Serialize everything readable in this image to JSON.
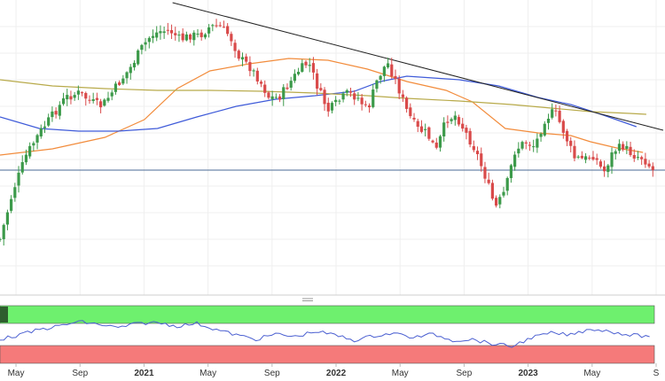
{
  "chart_data": {
    "type": "candlestick",
    "title": "",
    "x_ticks": [
      {
        "label": "May",
        "date": "2020-05",
        "bold": false
      },
      {
        "label": "Sep",
        "date": "2020-09",
        "bold": false
      },
      {
        "label": "2021",
        "date": "2021-01",
        "bold": true
      },
      {
        "label": "May",
        "date": "2021-05",
        "bold": false
      },
      {
        "label": "Sep",
        "date": "2021-09",
        "bold": false
      },
      {
        "label": "2022",
        "date": "2022-01",
        "bold": true
      },
      {
        "label": "May",
        "date": "2022-05",
        "bold": false
      },
      {
        "label": "Sep",
        "date": "2022-09",
        "bold": false
      },
      {
        "label": "2023",
        "date": "2023-01",
        "bold": true
      },
      {
        "label": "May",
        "date": "2023-05",
        "bold": false
      },
      {
        "label": "S",
        "date": "2023-09",
        "bold": false
      }
    ],
    "xlim": [
      "2020-04",
      "2023-09"
    ],
    "grid": true,
    "price_panel": {
      "close_path": [
        [
          0.0,
          270
        ],
        [
          0.02,
          215
        ],
        [
          0.04,
          175
        ],
        [
          0.06,
          150
        ],
        [
          0.08,
          130
        ],
        [
          0.1,
          110
        ],
        [
          0.12,
          105
        ],
        [
          0.14,
          115
        ],
        [
          0.155,
          120
        ],
        [
          0.17,
          105
        ],
        [
          0.185,
          90
        ],
        [
          0.2,
          75
        ],
        [
          0.215,
          55
        ],
        [
          0.23,
          40
        ],
        [
          0.245,
          35
        ],
        [
          0.26,
          35
        ],
        [
          0.275,
          45
        ],
        [
          0.29,
          40
        ],
        [
          0.305,
          40
        ],
        [
          0.32,
          30
        ],
        [
          0.335,
          30
        ],
        [
          0.35,
          40
        ],
        [
          0.365,
          65
        ],
        [
          0.38,
          75
        ],
        [
          0.395,
          90
        ],
        [
          0.41,
          110
        ],
        [
          0.425,
          110
        ],
        [
          0.44,
          95
        ],
        [
          0.455,
          80
        ],
        [
          0.47,
          70
        ],
        [
          0.485,
          100
        ],
        [
          0.5,
          125
        ],
        [
          0.515,
          115
        ],
        [
          0.53,
          105
        ],
        [
          0.545,
          110
        ],
        [
          0.56,
          125
        ],
        [
          0.575,
          90
        ],
        [
          0.59,
          70
        ],
        [
          0.605,
          95
        ],
        [
          0.62,
          125
        ],
        [
          0.635,
          145
        ],
        [
          0.65,
          150
        ],
        [
          0.665,
          170
        ],
        [
          0.68,
          135
        ],
        [
          0.695,
          130
        ],
        [
          0.71,
          150
        ],
        [
          0.725,
          170
        ],
        [
          0.74,
          200
        ],
        [
          0.755,
          235
        ],
        [
          0.77,
          215
        ],
        [
          0.785,
          170
        ],
        [
          0.8,
          160
        ],
        [
          0.815,
          165
        ],
        [
          0.83,
          135
        ],
        [
          0.845,
          125
        ],
        [
          0.86,
          150
        ],
        [
          0.875,
          178
        ],
        [
          0.89,
          180
        ],
        [
          0.905,
          175
        ],
        [
          0.92,
          195
        ],
        [
          0.935,
          170
        ],
        [
          0.95,
          165
        ],
        [
          0.965,
          175
        ],
        [
          0.98,
          178
        ],
        [
          0.995,
          192
        ]
      ],
      "moving_averages": [
        {
          "color": "#f28c3c",
          "points": [
            [
              0.0,
              175
            ],
            [
              0.08,
              168
            ],
            [
              0.16,
              155
            ],
            [
              0.22,
              135
            ],
            [
              0.27,
              100
            ],
            [
              0.32,
              80
            ],
            [
              0.38,
              72
            ],
            [
              0.44,
              66
            ],
            [
              0.5,
              68
            ],
            [
              0.56,
              78
            ],
            [
              0.62,
              92
            ],
            [
              0.68,
              102
            ],
            [
              0.72,
              115
            ],
            [
              0.77,
              145
            ],
            [
              0.82,
              150
            ],
            [
              0.87,
              153
            ],
            [
              0.9,
              160
            ],
            [
              0.94,
              167
            ],
            [
              0.98,
              172
            ]
          ]
        },
        {
          "color": "#3f5bd9",
          "points": [
            [
              0.0,
              132
            ],
            [
              0.06,
              145
            ],
            [
              0.12,
              148
            ],
            [
              0.18,
              148
            ],
            [
              0.24,
              145
            ],
            [
              0.3,
              132
            ],
            [
              0.36,
              120
            ],
            [
              0.42,
              112
            ],
            [
              0.48,
              108
            ],
            [
              0.54,
              103
            ],
            [
              0.58,
              92
            ],
            [
              0.62,
              86
            ],
            [
              0.66,
              88
            ],
            [
              0.7,
              90
            ],
            [
              0.76,
              97
            ],
            [
              0.82,
              110
            ],
            [
              0.87,
              118
            ],
            [
              0.92,
              130
            ],
            [
              0.97,
              143
            ]
          ]
        },
        {
          "color": "#b8aa4a",
          "points": [
            [
              0.0,
              90
            ],
            [
              0.08,
              97
            ],
            [
              0.16,
              100
            ],
            [
              0.24,
              102
            ],
            [
              0.32,
              102
            ],
            [
              0.4,
              103
            ],
            [
              0.48,
              105
            ],
            [
              0.56,
              108
            ],
            [
              0.62,
              111
            ],
            [
              0.7,
              114
            ],
            [
              0.78,
              118
            ],
            [
              0.84,
              122
            ],
            [
              0.9,
              126
            ],
            [
              0.96,
              128
            ],
            [
              0.985,
              129
            ]
          ]
        }
      ],
      "trendline": {
        "color": "#222222",
        "from": [
          0.263,
          3
        ],
        "to": [
          1.0,
          147
        ]
      },
      "horizontal_level": {
        "color": "#4a6a94",
        "y": 192
      }
    },
    "oscillator_panel": {
      "line_color": "#4a5fd1",
      "upper_zone_color": "#6ef06e",
      "lower_zone_color": "#f57a7a",
      "points": [
        [
          0.0,
          383
        ],
        [
          0.03,
          378
        ],
        [
          0.06,
          372
        ],
        [
          0.09,
          368
        ],
        [
          0.12,
          363
        ],
        [
          0.15,
          366
        ],
        [
          0.18,
          370
        ],
        [
          0.21,
          365
        ],
        [
          0.24,
          364
        ],
        [
          0.27,
          368
        ],
        [
          0.3,
          365
        ],
        [
          0.33,
          372
        ],
        [
          0.36,
          378
        ],
        [
          0.39,
          383
        ],
        [
          0.42,
          377
        ],
        [
          0.45,
          380
        ],
        [
          0.48,
          374
        ],
        [
          0.51,
          378
        ],
        [
          0.54,
          384
        ],
        [
          0.57,
          379
        ],
        [
          0.6,
          376
        ],
        [
          0.63,
          381
        ],
        [
          0.66,
          377
        ],
        [
          0.69,
          384
        ],
        [
          0.72,
          383
        ],
        [
          0.75,
          388
        ],
        [
          0.78,
          391
        ],
        [
          0.81,
          381
        ],
        [
          0.84,
          376
        ],
        [
          0.87,
          378
        ],
        [
          0.9,
          371
        ],
        [
          0.93,
          374
        ],
        [
          0.96,
          378
        ],
        [
          0.99,
          380
        ]
      ]
    }
  }
}
